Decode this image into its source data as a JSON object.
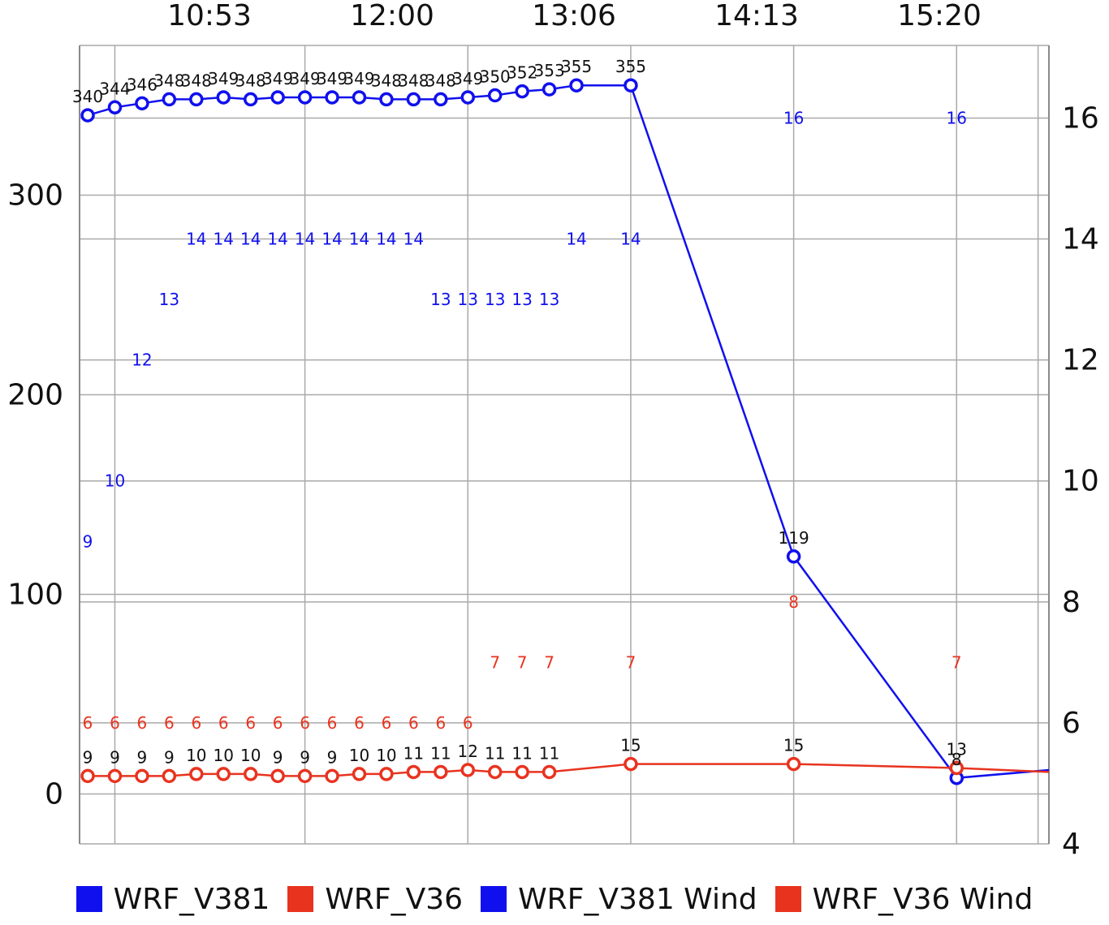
{
  "chart_data": {
    "type": "line",
    "x_ticks": [
      "10:53",
      "12:00",
      "13:06",
      "14:13",
      "15:20"
    ],
    "y_left": {
      "ticks": [
        "0",
        "100",
        "200",
        "300"
      ],
      "lim": [
        -25,
        375
      ]
    },
    "y_right": {
      "ticks": [
        "4",
        "6",
        "8",
        "10",
        "12",
        "14",
        "16"
      ],
      "lim": [
        4,
        17.2
      ]
    },
    "grid": true,
    "legend_position": "bottom",
    "colors": {
      "V381": "#1010ee",
      "V36": "#e8331f",
      "label": "#111111"
    },
    "series": [
      {
        "name": "WRF_V381",
        "axis": "left",
        "x": [
          "10:36",
          "10:46",
          "10:56",
          "11:06",
          "11:16",
          "11:26",
          "11:36",
          "11:46",
          "11:56",
          "12:06",
          "12:16",
          "12:26",
          "12:36",
          "12:46",
          "12:56",
          "13:06",
          "13:16",
          "13:26",
          "13:36",
          "13:56",
          "14:56",
          "15:56",
          "16:30"
        ],
        "values": [
          340,
          344,
          346,
          348,
          348,
          349,
          348,
          349,
          349,
          349,
          349,
          348,
          348,
          348,
          349,
          350,
          352,
          353,
          355,
          355,
          119,
          8,
          12
        ],
        "labels": [
          "340",
          "344",
          "346",
          "348",
          "348",
          "349",
          "348",
          "349",
          "349",
          "349",
          "349",
          "348",
          "348",
          "348",
          "349",
          "350",
          "352",
          "353",
          "355",
          "355",
          "119",
          "8",
          ""
        ]
      },
      {
        "name": "WRF_V36",
        "axis": "left",
        "x": [
          "10:36",
          "10:46",
          "10:56",
          "11:06",
          "11:16",
          "11:26",
          "11:36",
          "11:46",
          "11:56",
          "12:06",
          "12:16",
          "12:26",
          "12:36",
          "12:46",
          "12:56",
          "13:06",
          "13:16",
          "13:26",
          "13:56",
          "14:56",
          "15:56",
          "16:30"
        ],
        "values": [
          9,
          9,
          9,
          9,
          10,
          10,
          10,
          9,
          9,
          9,
          10,
          10,
          11,
          11,
          12,
          11,
          11,
          11,
          15,
          15,
          13,
          11
        ],
        "labels": [
          "9",
          "9",
          "9",
          "9",
          "10",
          "10",
          "10",
          "9",
          "9",
          "9",
          "10",
          "10",
          "11",
          "11",
          "12",
          "11",
          "11",
          "11",
          "15",
          "15",
          "13",
          ""
        ]
      },
      {
        "name": "WRF_V381 Wind",
        "axis": "right",
        "x": [
          "10:36",
          "10:46",
          "10:56",
          "11:06",
          "11:16",
          "11:26",
          "11:36",
          "11:46",
          "11:56",
          "12:06",
          "12:16",
          "12:26",
          "12:36",
          "12:46",
          "12:56",
          "13:06",
          "13:16",
          "13:26",
          "13:36",
          "13:56",
          "14:56",
          "15:56"
        ],
        "values": [
          9,
          10,
          12,
          13,
          14,
          14,
          14,
          14,
          14,
          14,
          14,
          14,
          14,
          13,
          13,
          13,
          13,
          13,
          14,
          14,
          16,
          16
        ]
      },
      {
        "name": "WRF_V36 Wind",
        "axis": "right",
        "x": [
          "10:36",
          "10:46",
          "10:56",
          "11:06",
          "11:16",
          "11:26",
          "11:36",
          "11:46",
          "11:56",
          "12:06",
          "12:16",
          "12:26",
          "12:36",
          "12:46",
          "12:56",
          "13:06",
          "13:16",
          "13:26",
          "13:56",
          "14:56",
          "15:56"
        ],
        "values": [
          6,
          6,
          6,
          6,
          6,
          6,
          6,
          6,
          6,
          6,
          6,
          6,
          6,
          6,
          6,
          7,
          7,
          7,
          7,
          8,
          7
        ]
      }
    ]
  }
}
